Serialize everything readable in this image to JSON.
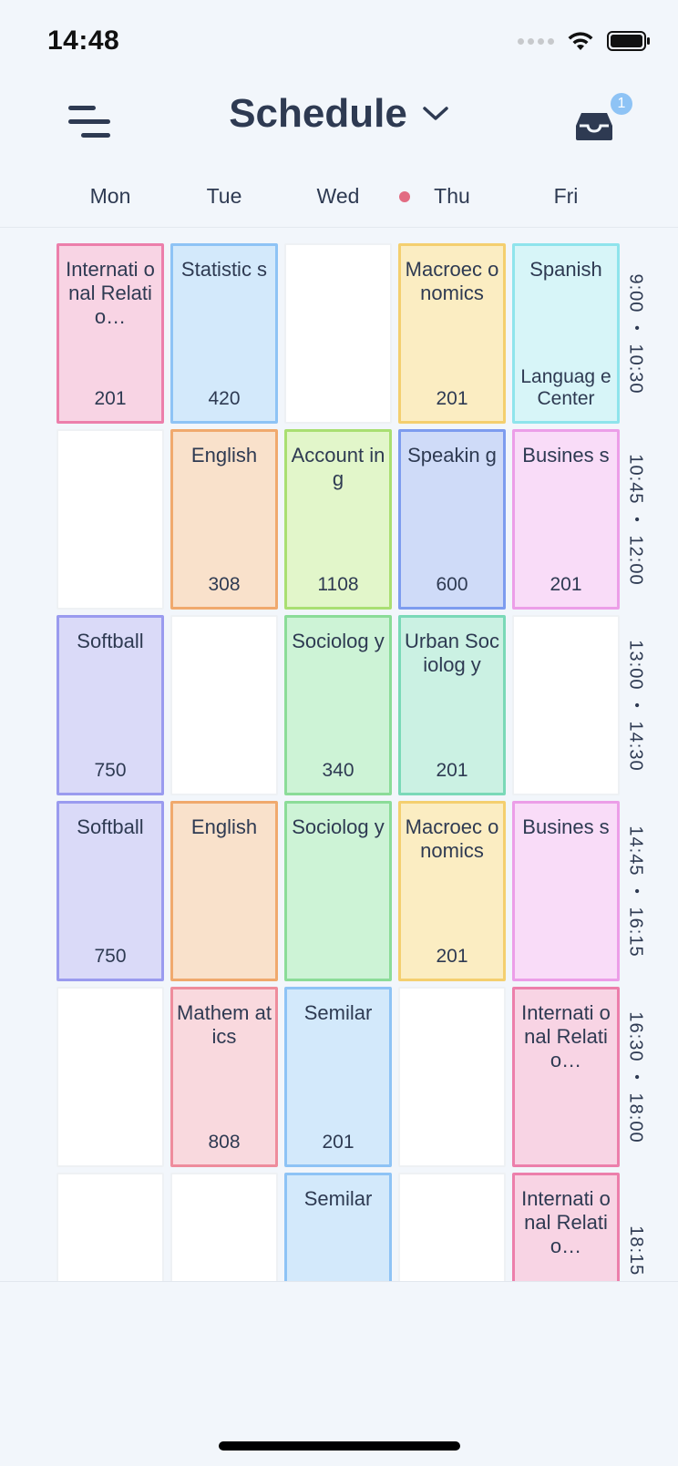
{
  "status": {
    "time": "14:48"
  },
  "header": {
    "title": "Schedule",
    "inbox_badge": "1"
  },
  "days": [
    "Mon",
    "Tue",
    "Wed",
    "Thu",
    "Fri"
  ],
  "today_index": 3,
  "colors": {
    "pink": {
      "bg": "#f8d4e4",
      "border": "#ec7fab"
    },
    "blue": {
      "bg": "#d3e9fb",
      "border": "#8ec3f5"
    },
    "yellow": {
      "bg": "#fbedc2",
      "border": "#f4cf6f"
    },
    "cyan": {
      "bg": "#d7f5f8",
      "border": "#8fe4ec"
    },
    "orange": {
      "bg": "#f9e1cb",
      "border": "#f0a96d"
    },
    "lime": {
      "bg": "#e2f6ca",
      "border": "#a9df72"
    },
    "indigo": {
      "bg": "#cfdbf8",
      "border": "#7d9cef"
    },
    "magenta": {
      "bg": "#f9dcf8",
      "border": "#ec9ee8"
    },
    "lavender": {
      "bg": "#dadaf8",
      "border": "#9a9bef"
    },
    "green": {
      "bg": "#cdf3d6",
      "border": "#8bdc98"
    },
    "teal": {
      "bg": "#cbf1e3",
      "border": "#7ad9b8"
    },
    "rose": {
      "bg": "#f9d9de",
      "border": "#ee8c9c"
    }
  },
  "periods": [
    {
      "time": "9:00 ・ 10:30",
      "cells": [
        {
          "name": "Internati onal Relatio…",
          "room": "201",
          "color": "pink"
        },
        {
          "name": "Statistic s",
          "room": "420",
          "color": "blue"
        },
        null,
        {
          "name": "Macroec onomics",
          "room": "201",
          "color": "yellow"
        },
        {
          "name": "Spanish",
          "room": "Languag e Center",
          "color": "cyan"
        }
      ]
    },
    {
      "time": "10:45 ・ 12:00",
      "cells": [
        null,
        {
          "name": "English",
          "room": "308",
          "color": "orange"
        },
        {
          "name": "Account ing",
          "room": "1108",
          "color": "lime"
        },
        {
          "name": "Speakin g",
          "room": "600",
          "color": "indigo"
        },
        {
          "name": "Busines s",
          "room": "201",
          "color": "magenta"
        }
      ]
    },
    {
      "time": "13:00 ・ 14:30",
      "cells": [
        {
          "name": "Softball",
          "room": "750",
          "color": "lavender"
        },
        null,
        {
          "name": "Sociolog y",
          "room": "340",
          "color": "green"
        },
        {
          "name": "Urban Sociolog y",
          "room": "201",
          "color": "teal"
        },
        null
      ]
    },
    {
      "time": "14:45 ・ 16:15",
      "cells": [
        {
          "name": "Softball",
          "room": "750",
          "color": "lavender"
        },
        {
          "name": "English",
          "room": "",
          "color": "orange"
        },
        {
          "name": "Sociolog y",
          "room": "",
          "color": "green"
        },
        {
          "name": "Macroec onomics",
          "room": "201",
          "color": "yellow"
        },
        {
          "name": "Busines s",
          "room": "",
          "color": "magenta"
        }
      ]
    },
    {
      "time": "16:30 ・ 18:00",
      "cells": [
        null,
        {
          "name": "Mathem atics",
          "room": "808",
          "color": "rose"
        },
        {
          "name": "Semilar",
          "room": "201",
          "color": "blue"
        },
        null,
        {
          "name": "Internati onal Relatio…",
          "room": "",
          "color": "pink"
        }
      ]
    },
    {
      "time": "18:15 ・",
      "cells": [
        null,
        null,
        {
          "name": "Semilar",
          "room": "",
          "color": "blue"
        },
        null,
        {
          "name": "Internati onal Relatio…",
          "room": "",
          "color": "pink"
        }
      ]
    }
  ]
}
